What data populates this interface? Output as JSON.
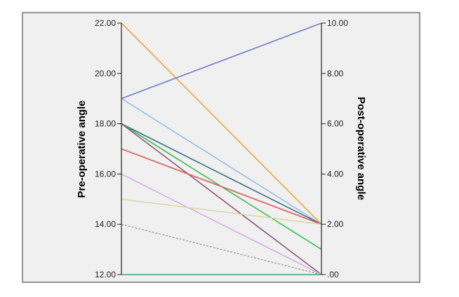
{
  "chart_data": {
    "type": "line",
    "title": "",
    "left_axis": {
      "label": "Pre-operative angle",
      "range": [
        12,
        22
      ],
      "ticks": [
        "12.00",
        "14.00",
        "16.00",
        "18.00",
        "20.00",
        "22.00"
      ]
    },
    "right_axis": {
      "label": "Post-operative angle",
      "range": [
        0,
        10
      ],
      "ticks": [
        ".00",
        "2.00",
        "4.00",
        "6.00",
        "8.00",
        "10.00"
      ]
    },
    "grid": false,
    "legend": "none",
    "series": [
      {
        "pre": 22,
        "post": 2,
        "color": "#f0a33c",
        "dash": false
      },
      {
        "pre": 19,
        "post": 10,
        "color": "#6f7fc8",
        "dash": false
      },
      {
        "pre": 19,
        "post": 2,
        "color": "#97bfe6",
        "dash": false
      },
      {
        "pre": 18,
        "post": 2,
        "color": "#3a6e82",
        "dash": false
      },
      {
        "pre": 18,
        "post": 1,
        "color": "#3cbf52",
        "dash": false
      },
      {
        "pre": 18,
        "post": 0,
        "color": "#8e5a78",
        "dash": false
      },
      {
        "pre": 17,
        "post": 2,
        "color": "#e05858",
        "dash": false
      },
      {
        "pre": 16,
        "post": 0,
        "color": "#d2b2e4",
        "dash": false
      },
      {
        "pre": 15,
        "post": 2,
        "color": "#dcd6a4",
        "dash": false
      },
      {
        "pre": 14,
        "post": 0,
        "color": "#aaaaaa",
        "dash": true
      },
      {
        "pre": 12,
        "post": 0,
        "color": "#46a06a",
        "dash": false
      }
    ]
  }
}
